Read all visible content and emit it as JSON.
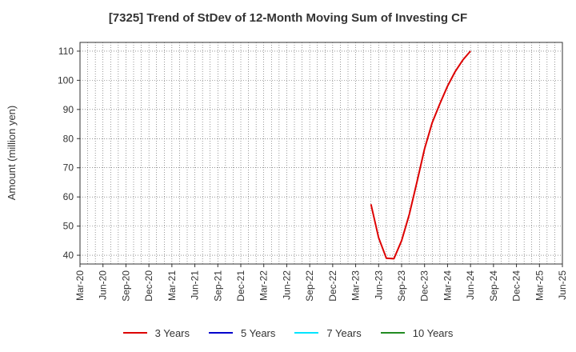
{
  "chart_data": {
    "type": "line",
    "title": "[7325]  Trend of StDev of 12-Month Moving Sum of Investing CF",
    "xlabel": "",
    "ylabel": "Amount (million yen)",
    "ylim": [
      37,
      113
    ],
    "yticks": [
      40,
      50,
      60,
      70,
      80,
      90,
      100,
      110
    ],
    "x_categories": [
      "Mar-20",
      "Jun-20",
      "Sep-20",
      "Dec-20",
      "Mar-21",
      "Jun-21",
      "Sep-21",
      "Dec-21",
      "Mar-22",
      "Jun-22",
      "Sep-22",
      "Dec-22",
      "Mar-23",
      "Jun-23",
      "Sep-23",
      "Dec-23",
      "Mar-24",
      "Jun-24",
      "Sep-24",
      "Dec-24",
      "Mar-25",
      "Jun-25"
    ],
    "grid": true,
    "legend_position": "bottom",
    "series": [
      {
        "name": "3 Years",
        "color": "#dd0000",
        "points": [
          [
            "May-23",
            57.5
          ],
          [
            "Jun-23",
            46
          ],
          [
            "Jul-23",
            39
          ],
          [
            "Aug-23",
            38.8
          ],
          [
            "Sep-23",
            45
          ],
          [
            "Oct-23",
            54
          ],
          [
            "Nov-23",
            65
          ],
          [
            "Dec-23",
            76.5
          ],
          [
            "Jan-24",
            85.5
          ],
          [
            "Feb-24",
            92
          ],
          [
            "Mar-24",
            98
          ],
          [
            "Apr-24",
            103
          ],
          [
            "May-24",
            107
          ],
          [
            "Jun-24",
            110
          ]
        ]
      },
      {
        "name": "5 Years",
        "color": "#0000cc",
        "points": []
      },
      {
        "name": "7 Years",
        "color": "#00e5ff",
        "points": []
      },
      {
        "name": "10 Years",
        "color": "#228b22",
        "points": []
      }
    ]
  }
}
